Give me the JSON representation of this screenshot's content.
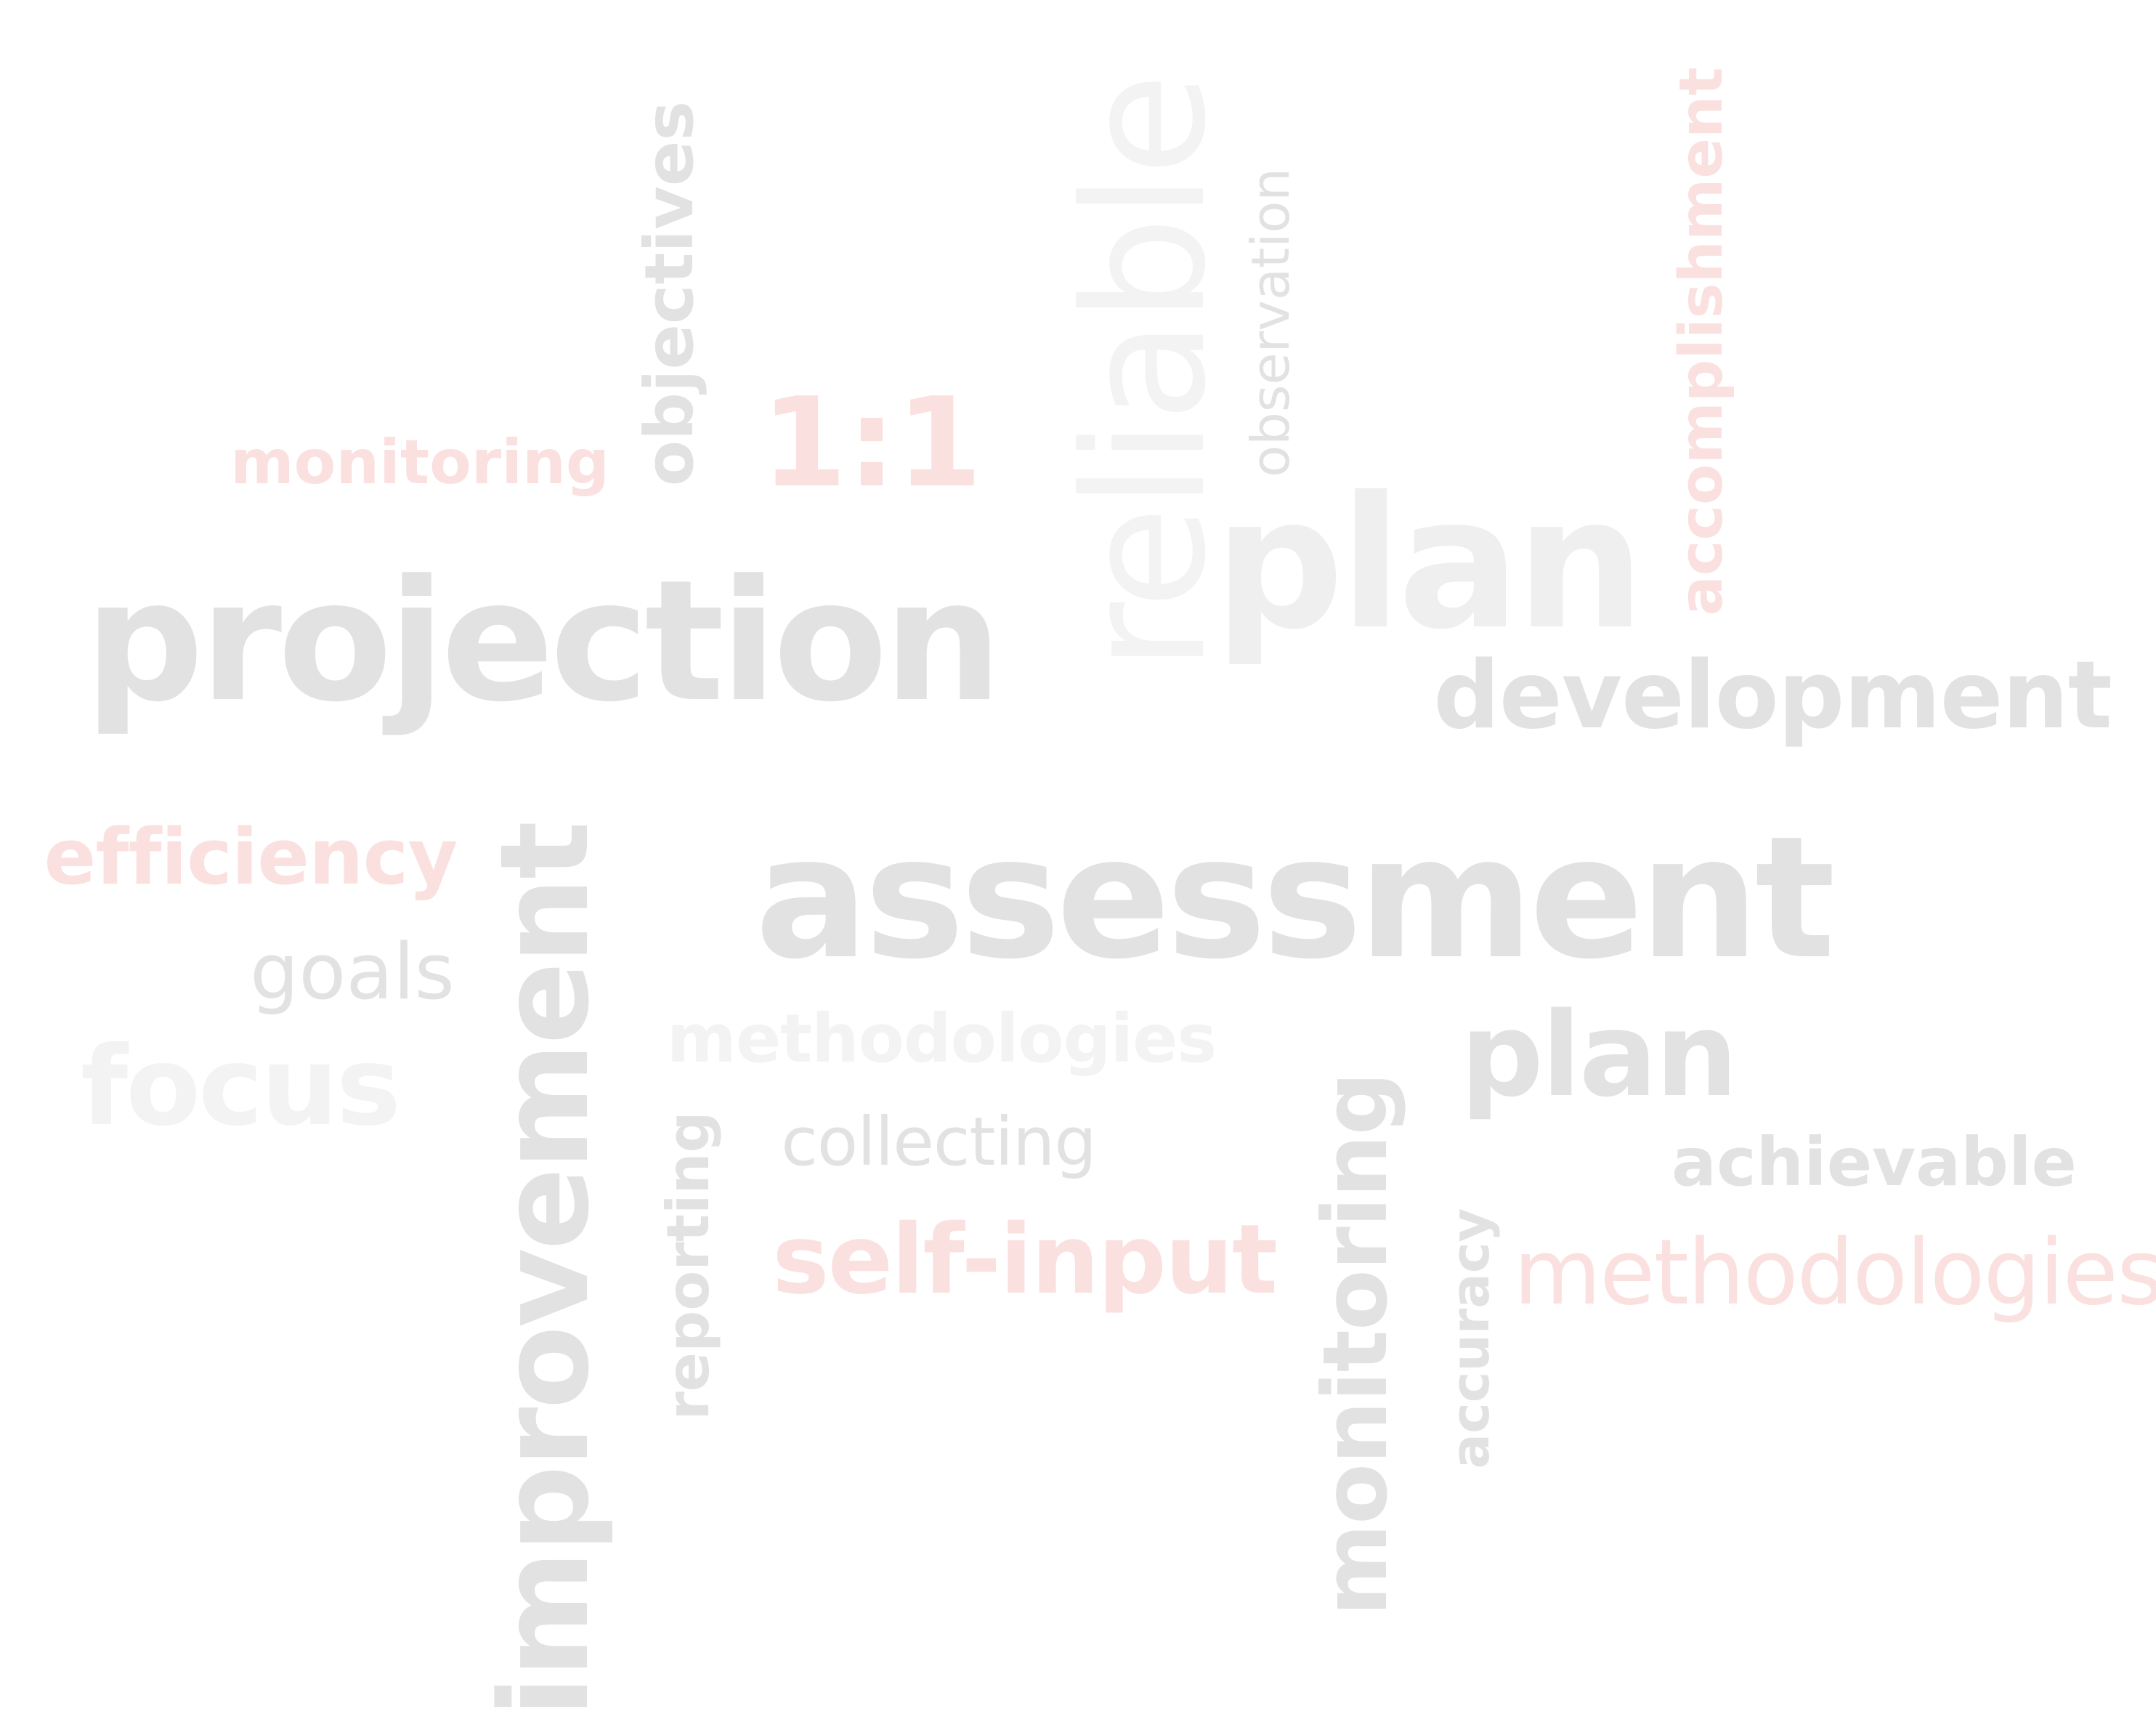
{
  "word_cloud": {
    "words": {
      "projection": "projection",
      "assessment": "assessment",
      "plan_top": "plan",
      "development": "development",
      "plan_mid": "plan",
      "achievable": "achievable",
      "methodologies_right": "methodologies",
      "methodologies_center": "methodologies",
      "collecting": "collecting",
      "self_input": "self-input",
      "efficiency": "efficiency",
      "goals": "goals",
      "focus": "focus",
      "monitoring_top": "monitoring",
      "one_to_one": "1:1",
      "objectives": "objectives",
      "reliable": "reliable",
      "observation": "observation",
      "accomplishment": "accomplishment",
      "improvement": "improvement",
      "reporting": "reporting",
      "monitoring_vertical": "monitoring",
      "accuracy": "accuracy"
    },
    "colors": {
      "grey": "#e2e2e2",
      "pale": "#efefef",
      "faint": "#f3f3f3",
      "pink": "#fbe0e0"
    }
  }
}
